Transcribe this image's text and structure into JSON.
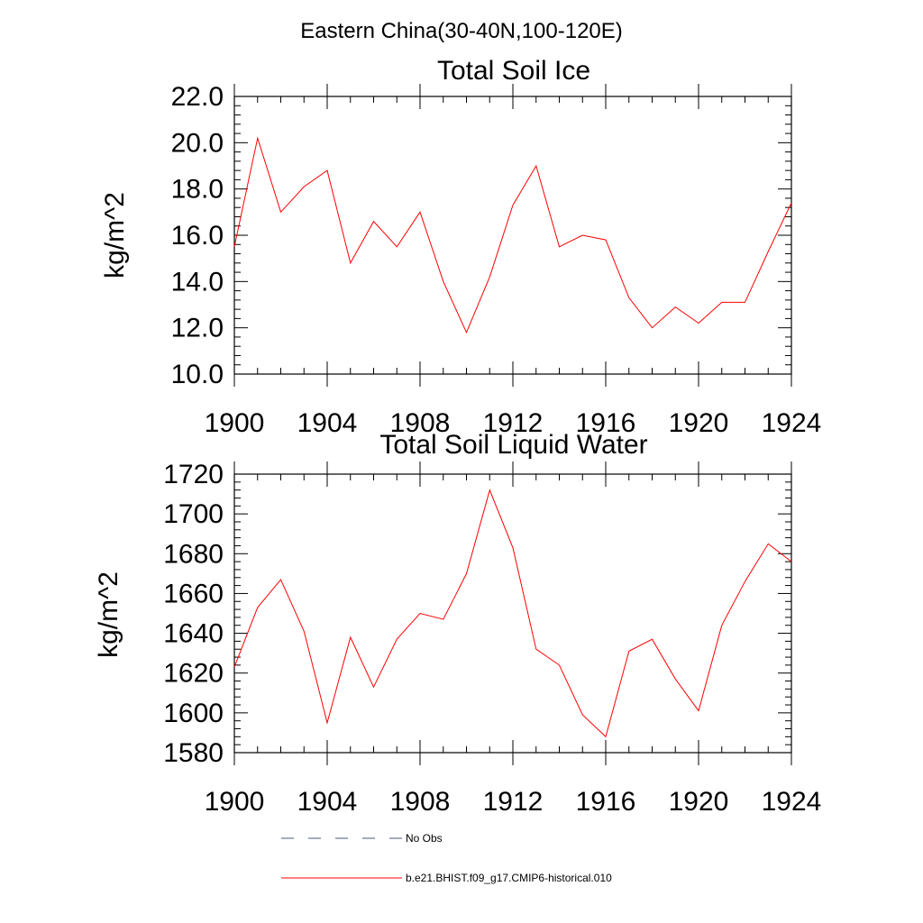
{
  "figure": {
    "title": "Eastern China(30-40N,100-120E)"
  },
  "legend": {
    "items": [
      {
        "label": "No Obs",
        "style": "dashed",
        "color": "#4a5a7a"
      },
      {
        "label": "b.e21.BHIST.f09_g17.CMIP6-historical.010",
        "style": "solid",
        "color": "#ff0000"
      }
    ]
  },
  "chart_data": [
    {
      "type": "line",
      "title": "Total Soil Ice",
      "xlabel": "",
      "ylabel": "kg/m^2",
      "xlim": [
        1900,
        1924
      ],
      "ylim": [
        10,
        22
      ],
      "x_ticks": [
        1900,
        1904,
        1908,
        1912,
        1916,
        1920,
        1924
      ],
      "x_tick_labels": [
        "1900",
        "1904",
        "1908",
        "1912",
        "1916",
        "1920",
        "1924"
      ],
      "y_ticks": [
        10,
        12,
        14,
        16,
        18,
        20,
        22
      ],
      "y_tick_labels": [
        "10.0",
        "12.0",
        "14.0",
        "16.0",
        "18.0",
        "20.0",
        "22.0"
      ],
      "x_minor_step": 1,
      "y_minor_step": 0.4,
      "grid": false,
      "series": [
        {
          "color": "#ff0000",
          "x": [
            1900,
            1901,
            1902,
            1903,
            1904,
            1905,
            1906,
            1907,
            1908,
            1909,
            1910,
            1911,
            1912,
            1913,
            1914,
            1915,
            1916,
            1917,
            1918,
            1919,
            1920,
            1921,
            1922,
            1923,
            1924
          ],
          "values": [
            15.5,
            20.2,
            17.0,
            18.1,
            18.8,
            14.8,
            16.6,
            15.5,
            17.0,
            14.0,
            11.8,
            14.2,
            17.3,
            19.0,
            15.5,
            16.0,
            15.8,
            13.3,
            12.0,
            12.9,
            12.2,
            13.1,
            13.1,
            15.3,
            17.4
          ]
        }
      ]
    },
    {
      "type": "line",
      "title": "Total Soil Liquid Water",
      "xlabel": "",
      "ylabel": "kg/m^2",
      "xlim": [
        1900,
        1924
      ],
      "ylim": [
        1580,
        1720
      ],
      "x_ticks": [
        1900,
        1904,
        1908,
        1912,
        1916,
        1920,
        1924
      ],
      "x_tick_labels": [
        "1900",
        "1904",
        "1908",
        "1912",
        "1916",
        "1920",
        "1924"
      ],
      "y_ticks": [
        1580,
        1600,
        1620,
        1640,
        1660,
        1680,
        1700,
        1720
      ],
      "y_tick_labels": [
        "1580",
        "1600",
        "1620",
        "1640",
        "1660",
        "1680",
        "1700",
        "1720"
      ],
      "x_minor_step": 1,
      "y_minor_step": 4,
      "grid": false,
      "series": [
        {
          "color": "#ff0000",
          "x": [
            1900,
            1901,
            1902,
            1903,
            1904,
            1905,
            1906,
            1907,
            1908,
            1909,
            1910,
            1911,
            1912,
            1913,
            1914,
            1915,
            1916,
            1917,
            1918,
            1919,
            1920,
            1921,
            1922,
            1923,
            1924
          ],
          "values": [
            1623,
            1653,
            1667,
            1641,
            1595,
            1638,
            1613,
            1637,
            1650,
            1647,
            1670,
            1712,
            1683,
            1632,
            1624,
            1599,
            1588,
            1631,
            1637,
            1617,
            1601,
            1644,
            1666,
            1685,
            1676
          ]
        }
      ]
    }
  ]
}
